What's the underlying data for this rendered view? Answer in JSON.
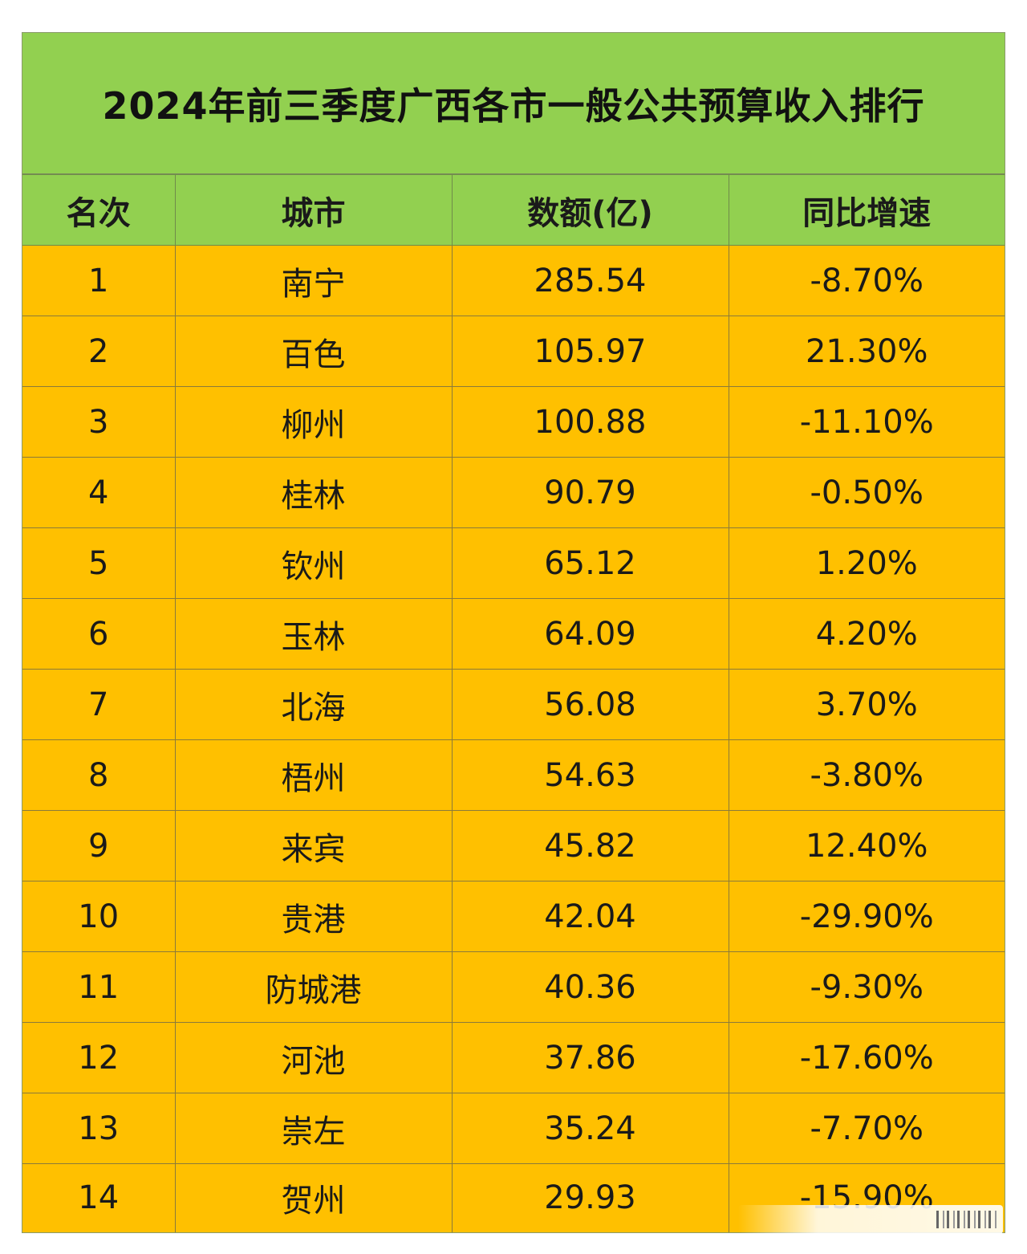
{
  "title": "2024年前三季度广西各市一般公共预算收入排行",
  "columns": [
    "名次",
    "城市",
    "数额(亿)",
    "同比增速"
  ],
  "rows": [
    {
      "rank": "1",
      "city": "南宁",
      "amount": "285.54",
      "growth": "-8.70%"
    },
    {
      "rank": "2",
      "city": "百色",
      "amount": "105.97",
      "growth": "21.30%"
    },
    {
      "rank": "3",
      "city": "柳州",
      "amount": "100.88",
      "growth": "-11.10%"
    },
    {
      "rank": "4",
      "city": "桂林",
      "amount": "90.79",
      "growth": "-0.50%"
    },
    {
      "rank": "5",
      "city": "钦州",
      "amount": "65.12",
      "growth": "1.20%"
    },
    {
      "rank": "6",
      "city": "玉林",
      "amount": "64.09",
      "growth": "4.20%"
    },
    {
      "rank": "7",
      "city": "北海",
      "amount": "56.08",
      "growth": "3.70%"
    },
    {
      "rank": "8",
      "city": "梧州",
      "amount": "54.63",
      "growth": "-3.80%"
    },
    {
      "rank": "9",
      "city": "来宾",
      "amount": "45.82",
      "growth": "12.40%"
    },
    {
      "rank": "10",
      "city": "贵港",
      "amount": "42.04",
      "growth": "-29.90%"
    },
    {
      "rank": "11",
      "city": "防城港",
      "amount": "40.36",
      "growth": "-9.30%"
    },
    {
      "rank": "12",
      "city": "河池",
      "amount": "37.86",
      "growth": "-17.60%"
    },
    {
      "rank": "13",
      "city": "崇左",
      "amount": "35.24",
      "growth": "-7.70%"
    },
    {
      "rank": "14",
      "city": "贺州",
      "amount": "29.93",
      "growth": "-15.90%"
    }
  ],
  "colors": {
    "header_bg": "#92d050",
    "row_bg": "#ffc000"
  }
}
